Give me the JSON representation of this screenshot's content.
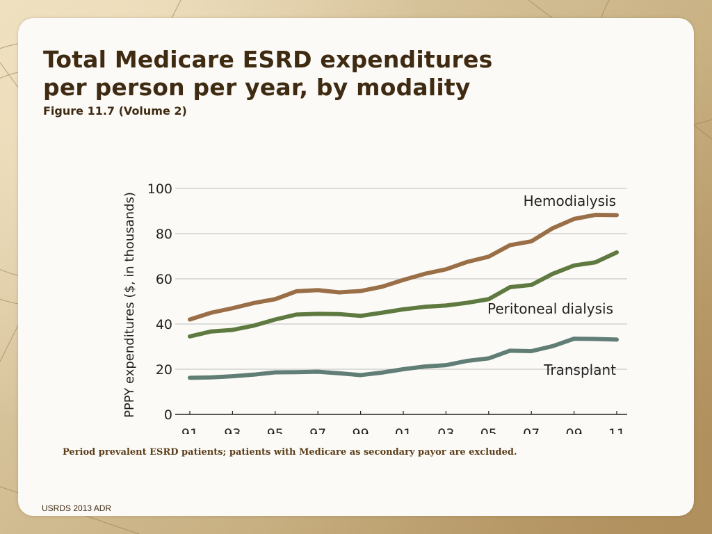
{
  "slide": {
    "title_line1": "Total Medicare ESRD expenditures",
    "title_line2": "per person per year, by modality",
    "subtitle": "Figure 11.7 (Volume 2)",
    "footnote": "Period prevalent ESRD patients; patients with Medicare as secondary payor are excluded.",
    "source": "USRDS 2013 ADR"
  },
  "colors": {
    "hemodialysis": "#9a6f47",
    "peritoneal": "#5e7a40",
    "transplant": "#607e76",
    "grid": "#bdbdbd",
    "title": "#3f2a12"
  },
  "chart_data": {
    "type": "line",
    "title": "Total Medicare ESRD expenditures per person per year, by modality",
    "xlabel": "",
    "ylabel": "PPPY expenditures ($, in thousands)",
    "ylim": [
      0,
      100
    ],
    "yticks": [
      0,
      20,
      40,
      60,
      80,
      100
    ],
    "x": [
      1991,
      1992,
      1993,
      1994,
      1995,
      1996,
      1997,
      1998,
      1999,
      2000,
      2001,
      2002,
      2003,
      2004,
      2005,
      2006,
      2007,
      2008,
      2009,
      2010,
      2011
    ],
    "xtick_labels": [
      "91",
      "93",
      "95",
      "97",
      "99",
      "01",
      "03",
      "05",
      "07",
      "09",
      "11"
    ],
    "xtick_values": [
      1991,
      1993,
      1995,
      1997,
      1999,
      2001,
      2003,
      2005,
      2007,
      2009,
      2011
    ],
    "grid": true,
    "series": [
      {
        "name": "Hemodialysis",
        "values": [
          42,
          45,
          47,
          49.3,
          51,
          54.5,
          55,
          54,
          54.6,
          56.5,
          59.5,
          62.2,
          64.2,
          67.5,
          69.8,
          74.9,
          76.6,
          82.4,
          86.5,
          88.3,
          88.2
        ]
      },
      {
        "name": "Peritoneal dialysis",
        "values": [
          34.5,
          36.7,
          37.4,
          39.3,
          42,
          44.2,
          44.5,
          44.4,
          43.6,
          45,
          46.5,
          47.6,
          48.2,
          49.4,
          51,
          56.3,
          57.3,
          62.2,
          65.9,
          67.3,
          71.7
        ]
      },
      {
        "name": "Transplant",
        "values": [
          16.2,
          16.4,
          16.9,
          17.6,
          18.6,
          18.7,
          18.9,
          18.2,
          17.4,
          18.5,
          20,
          21.2,
          21.8,
          23.7,
          24.8,
          28.2,
          28,
          30.2,
          33.5,
          33.4,
          33.1
        ]
      }
    ]
  }
}
